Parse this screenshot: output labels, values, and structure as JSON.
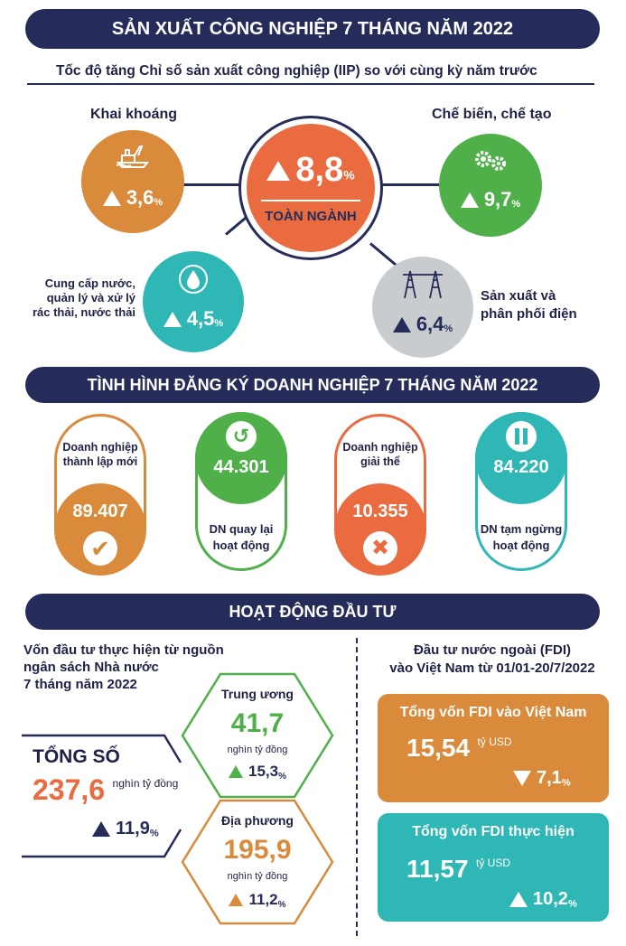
{
  "header": {
    "title": "SẢN XUẤT CÔNG NGHIỆP 7 THÁNG NĂM 2022"
  },
  "iip": {
    "subtitle": "Tốc độ tăng Chỉ số sản xuất công nghiệp (IIP) so với cùng kỳ năm trước",
    "center": {
      "value": "8,8",
      "unit": "%",
      "label": "TOÀN NGÀNH",
      "color": "#e96b3f"
    },
    "mining": {
      "label": "Khai khoáng",
      "value": "3,6",
      "unit": "%",
      "icon": "oil-rig-icon",
      "color": "#d98a3a"
    },
    "manufacturing": {
      "label": "Chế biến, chế tạo",
      "value": "9,7",
      "unit": "%",
      "icon": "gears-icon",
      "color": "#4fb04a"
    },
    "water": {
      "label": "Cung cấp nước,\nquản lý và xử lý\nrác thải, nước thải",
      "value": "4,5",
      "unit": "%",
      "icon": "water-drop-icon",
      "color": "#2fb7b6"
    },
    "power": {
      "label": "Sản xuất và\nphân phối điện",
      "value": "6,4",
      "unit": "%",
      "icon": "power-tower-icon",
      "color": "#c8cccf"
    }
  },
  "enterprise": {
    "title": "TÌNH HÌNH ĐĂNG KÝ DOANH NGHIỆP 7 THÁNG NĂM 2022",
    "items": [
      {
        "label": "Doanh nghiệp\nthành lập mới",
        "value": "89.407",
        "icon": "check-icon",
        "color": "#d98a3a"
      },
      {
        "label": "DN quay lại\nhoạt động",
        "value": "44.301",
        "icon": "return-arrow-icon",
        "color": "#4fb04a"
      },
      {
        "label": "Doanh nghiệp\ngiải thể",
        "value": "10.355",
        "icon": "cross-icon",
        "color": "#e96b3f"
      },
      {
        "label": "DN tạm ngừng\nhoạt động",
        "value": "84.220",
        "icon": "pause-icon",
        "color": "#2fb7b6"
      }
    ]
  },
  "investment": {
    "title": "HOẠT ĐỘNG ĐẦU TƯ",
    "budget_title": "Vốn đầu tư thực hiện từ nguồn\nngân sách Nhà nước\n7 tháng năm 2022",
    "total": {
      "label": "TỔNG SỐ",
      "value": "237,6",
      "unit": "nghìn tỷ đồng",
      "change": "11,9",
      "change_unit": "%"
    },
    "central": {
      "label": "Trung ương",
      "value": "41,7",
      "unit": "nghìn tỷ đồng",
      "change": "15,3",
      "change_unit": "%"
    },
    "local": {
      "label": "Địa phương",
      "value": "195,9",
      "unit": "nghìn tỷ đồng",
      "change": "11,2",
      "change_unit": "%"
    },
    "fdi_title": "Đầu tư nước ngoài (FDI)\nvào Việt Nam từ 01/01-20/7/2022",
    "fdi_registered": {
      "label": "Tổng vốn FDI vào Việt Nam",
      "value": "15,54",
      "unit": "tỷ USD",
      "change": "7,1",
      "change_unit": "%",
      "direction": "down",
      "color": "#d98a3a"
    },
    "fdi_realized": {
      "label": "Tổng vốn FDI thực hiện",
      "value": "11,57",
      "unit": "tỷ USD",
      "change": "10,2",
      "change_unit": "%",
      "direction": "up",
      "color": "#2fb7b6"
    }
  }
}
